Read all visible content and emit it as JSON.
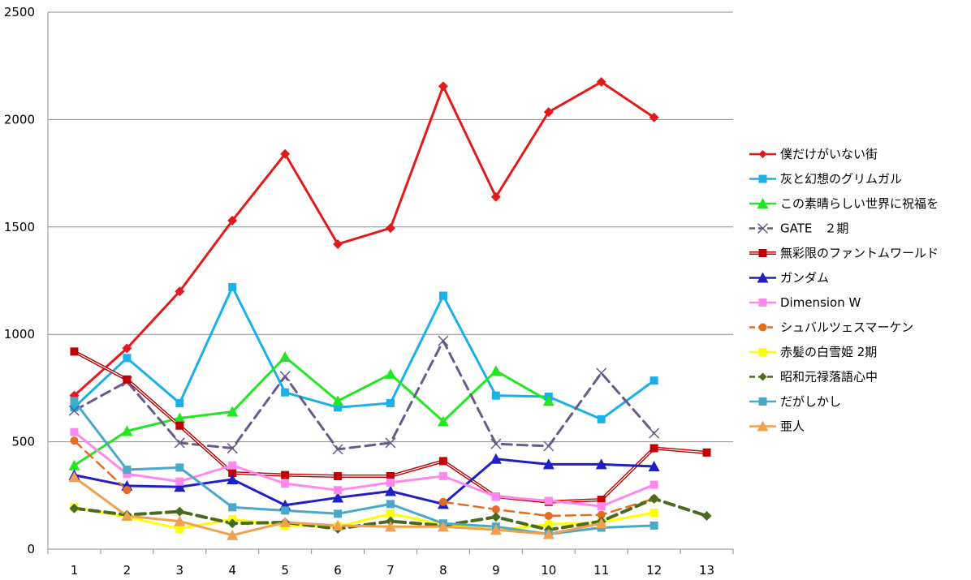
{
  "chart_data": {
    "type": "line",
    "title": "",
    "xlabel": "",
    "ylabel": "",
    "x": [
      1,
      2,
      3,
      4,
      5,
      6,
      7,
      8,
      9,
      10,
      11,
      12,
      13
    ],
    "ylim": [
      0,
      2500
    ],
    "yticks": [
      0,
      500,
      1000,
      1500,
      2000,
      2500
    ],
    "grid": true,
    "legend_position": "right",
    "series": [
      {
        "name": "僕だけがいない街",
        "color": "#e31a1c",
        "marker": "diamond",
        "dash": "solid",
        "double": false,
        "width": 3,
        "values": [
          715,
          935,
          1200,
          1530,
          1840,
          1420,
          1495,
          2155,
          1640,
          2035,
          2175,
          2010,
          null
        ]
      },
      {
        "name": "灰と幻想のグリムガル",
        "color": "#1ab0e8",
        "marker": "square",
        "dash": "solid",
        "double": false,
        "width": 3,
        "values": [
          660,
          890,
          680,
          1220,
          730,
          660,
          680,
          1180,
          715,
          710,
          605,
          785,
          null
        ]
      },
      {
        "name": "この素晴らしい世界に祝福を",
        "color": "#22e622",
        "marker": "triangle",
        "dash": "solid",
        "double": false,
        "width": 3,
        "values": [
          390,
          550,
          610,
          640,
          895,
          690,
          815,
          595,
          830,
          690,
          null,
          null,
          null
        ]
      },
      {
        "name": "GATE　２期",
        "color": "#6a5a8a",
        "marker": "x",
        "dash": "dashed",
        "double": false,
        "width": 3,
        "values": [
          645,
          780,
          495,
          470,
          805,
          465,
          495,
          970,
          490,
          480,
          820,
          540,
          null
        ]
      },
      {
        "name": "無彩限のファントムワールド",
        "color": "#c00000",
        "marker": "square",
        "dash": "solid",
        "double": true,
        "width": 3,
        "values": [
          920,
          790,
          575,
          355,
          345,
          340,
          340,
          410,
          245,
          220,
          230,
          470,
          450
        ]
      },
      {
        "name": "ガンダム",
        "color": "#1f1fc8",
        "marker": "triangle",
        "dash": "solid",
        "double": false,
        "width": 3,
        "values": [
          345,
          295,
          290,
          325,
          205,
          240,
          270,
          210,
          420,
          395,
          395,
          385,
          null
        ]
      },
      {
        "name": "Dimension W",
        "color": "#ff88ee",
        "marker": "square",
        "dash": "solid",
        "double": false,
        "width": 3,
        "values": [
          545,
          350,
          315,
          390,
          305,
          275,
          310,
          340,
          245,
          225,
          200,
          300,
          null
        ]
      },
      {
        "name": "シュバルツェスマーケン",
        "color": "#e86c20",
        "marker": "circle",
        "dash": "dashed",
        "double": false,
        "width": 2.5,
        "values": [
          505,
          275,
          null,
          null,
          null,
          null,
          null,
          220,
          185,
          155,
          160,
          235,
          null
        ]
      },
      {
        "name": "赤髪の白雪姫 2期",
        "color": "#ffff00",
        "marker": "square",
        "dash": "solid",
        "double": false,
        "width": 3,
        "values": [
          195,
          150,
          95,
          140,
          110,
          105,
          165,
          115,
          90,
          115,
          125,
          170,
          null
        ]
      },
      {
        "name": "昭和元禄落語心中",
        "color": "#4a6a20",
        "marker": "diamond",
        "dash": "dashed",
        "double": false,
        "width": 4,
        "values": [
          190,
          160,
          175,
          120,
          125,
          95,
          130,
          110,
          150,
          90,
          130,
          235,
          155
        ]
      },
      {
        "name": "だがしかし",
        "color": "#4aa8c8",
        "marker": "square",
        "dash": "solid",
        "double": false,
        "width": 3,
        "values": [
          690,
          370,
          380,
          195,
          180,
          165,
          210,
          120,
          105,
          70,
          100,
          110,
          null
        ]
      },
      {
        "name": "亜人",
        "color": "#f0a050",
        "marker": "triangle",
        "dash": "solid",
        "double": false,
        "width": 3,
        "values": [
          335,
          155,
          130,
          65,
          125,
          110,
          105,
          105,
          90,
          70,
          120,
          null,
          null
        ]
      }
    ]
  }
}
